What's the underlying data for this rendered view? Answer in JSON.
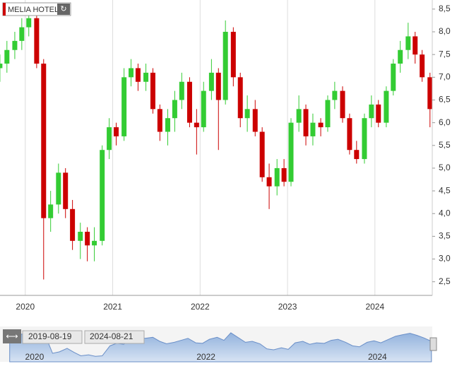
{
  "chart_data": {
    "type": "candlestick",
    "title": "MELIA HOTEL",
    "up_color": "#33cc33",
    "down_color": "#cc0000",
    "x": [
      2019.71,
      2019.79,
      2019.88,
      2019.96,
      2020.04,
      2020.13,
      2020.21,
      2020.29,
      2020.38,
      2020.46,
      2020.54,
      2020.63,
      2020.71,
      2020.79,
      2020.88,
      2020.96,
      2021.04,
      2021.13,
      2021.21,
      2021.29,
      2021.38,
      2021.46,
      2021.54,
      2021.63,
      2021.71,
      2021.79,
      2021.88,
      2021.96,
      2022.04,
      2022.13,
      2022.21,
      2022.29,
      2022.38,
      2022.46,
      2022.54,
      2022.63,
      2022.71,
      2022.79,
      2022.88,
      2022.96,
      2023.04,
      2023.13,
      2023.21,
      2023.29,
      2023.38,
      2023.46,
      2023.54,
      2023.63,
      2023.71,
      2023.79,
      2023.88,
      2023.96,
      2024.04,
      2024.13,
      2024.21,
      2024.29,
      2024.38,
      2024.46,
      2024.54,
      2024.63
    ],
    "open": [
      7.2,
      7.3,
      7.6,
      7.8,
      8.1,
      8.3,
      7.3,
      3.9,
      4.2,
      4.9,
      4.1,
      3.4,
      3.6,
      3.3,
      3.4,
      5.4,
      5.9,
      5.7,
      7.0,
      7.2,
      6.9,
      7.1,
      6.3,
      5.8,
      6.1,
      6.5,
      6.9,
      6.0,
      5.9,
      6.7,
      7.1,
      6.5,
      8.0,
      7.0,
      6.1,
      6.3,
      5.8,
      4.8,
      4.6,
      5.0,
      4.7,
      6.0,
      6.3,
      5.7,
      6.0,
      5.9,
      6.5,
      6.7,
      6.1,
      5.4,
      5.2,
      6.1,
      6.4,
      6.0,
      6.7,
      7.3,
      7.6,
      7.9,
      7.5,
      7.0
    ],
    "high": [
      7.5,
      7.8,
      8.0,
      8.3,
      8.5,
      8.4,
      7.4,
      4.5,
      5.1,
      5.0,
      4.3,
      3.8,
      3.7,
      3.7,
      5.5,
      6.1,
      6.0,
      7.2,
      7.4,
      7.3,
      7.3,
      7.2,
      6.4,
      6.3,
      6.7,
      7.1,
      7.0,
      6.3,
      6.9,
      7.4,
      7.2,
      8.25,
      8.1,
      7.1,
      6.6,
      6.5,
      5.9,
      5.1,
      5.2,
      5.2,
      6.1,
      6.6,
      6.4,
      6.2,
      6.1,
      6.6,
      6.9,
      6.8,
      6.2,
      5.6,
      6.2,
      6.6,
      6.5,
      6.8,
      7.4,
      7.8,
      8.2,
      8.0,
      7.6,
      7.1
    ],
    "low": [
      6.9,
      7.1,
      7.4,
      7.6,
      7.9,
      7.2,
      2.55,
      3.6,
      4.0,
      3.9,
      3.2,
      3.0,
      2.95,
      2.95,
      3.3,
      5.2,
      5.5,
      5.6,
      6.8,
      6.7,
      6.7,
      6.2,
      5.6,
      5.5,
      5.8,
      6.3,
      5.9,
      5.3,
      5.8,
      6.5,
      5.4,
      6.4,
      6.8,
      5.9,
      5.8,
      5.7,
      4.7,
      4.1,
      4.4,
      4.6,
      4.6,
      5.8,
      5.5,
      5.5,
      5.7,
      5.8,
      6.3,
      6.0,
      5.3,
      5.1,
      5.1,
      5.9,
      5.9,
      5.9,
      6.6,
      7.1,
      7.4,
      7.3,
      6.9,
      5.9
    ],
    "close": [
      7.3,
      7.6,
      7.8,
      8.1,
      8.3,
      7.3,
      3.9,
      4.2,
      4.9,
      4.1,
      3.4,
      3.6,
      3.3,
      3.4,
      5.4,
      5.9,
      5.7,
      7.0,
      7.2,
      6.9,
      7.1,
      6.3,
      5.8,
      6.1,
      6.5,
      6.9,
      6.0,
      5.9,
      6.7,
      7.1,
      6.5,
      8.0,
      7.0,
      6.1,
      6.3,
      5.8,
      4.8,
      4.6,
      5.0,
      4.7,
      6.0,
      6.3,
      5.7,
      6.0,
      5.9,
      6.5,
      6.7,
      6.1,
      5.4,
      5.2,
      6.1,
      6.4,
      6.0,
      6.7,
      7.3,
      7.6,
      7.9,
      7.5,
      7.0,
      6.3
    ],
    "xlim": [
      2019.63,
      2024.64
    ],
    "xticks": [
      2020,
      2021,
      2022,
      2023,
      2024
    ],
    "ylim": [
      2.2,
      8.7
    ],
    "yticks": [
      {
        "value": 2.5,
        "label": "2,5"
      },
      {
        "value": 3,
        "label": "3,0"
      },
      {
        "value": 3.5,
        "label": "3,5"
      },
      {
        "value": 4,
        "label": "4,0"
      },
      {
        "value": 4.5,
        "label": "4,5"
      },
      {
        "value": 5,
        "label": "5,0"
      },
      {
        "value": 5.5,
        "label": "5,5"
      },
      {
        "value": 6,
        "label": "6,0"
      },
      {
        "value": 6.5,
        "label": "6,5"
      },
      {
        "value": 7,
        "label": "7,0"
      },
      {
        "value": 7.5,
        "label": "7,5"
      },
      {
        "value": 8,
        "label": "8,0"
      },
      {
        "value": 8.5,
        "label": "8,5"
      }
    ],
    "grid": "x",
    "navigator": {
      "from": "2019-08-19",
      "to": "2024-08-21",
      "xticks": [
        2020,
        2022,
        2024
      ]
    }
  }
}
